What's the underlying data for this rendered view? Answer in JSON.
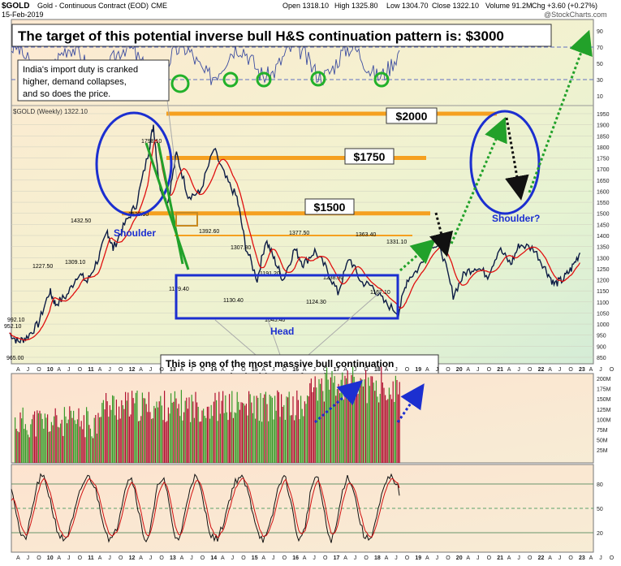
{
  "header": {
    "symbol": "$GOLD",
    "description": "Gold - Continuous Contract (EOD)",
    "exchange": "CME",
    "date": "15-Feb-2019",
    "open": "Open 1318.10",
    "high": "High 1325.80",
    "low": "Low 1304.70",
    "close": "Close 1322.10",
    "volume": "Volume 91.2M",
    "change": "Chg +3.60 (+0.27%)",
    "watermark": "@StockCharts.com",
    "price_label": "$GOLD (Weekly) 1322.10"
  },
  "annotations": {
    "headline": "The target of this potential inverse bull H&S continuation pattern is: $3000",
    "india_note": "India's import duty is cranked higher, demand collapses, and so does the price.",
    "massive_note": "This is one of the most massive bull continuation H&S patterns in the history of markets.",
    "label_2000": "$2000",
    "label_1750": "$1750",
    "label_1500": "$1500",
    "shoulder_left": "Shoulder",
    "shoulder_right": "Shoulder?",
    "head": "Head"
  },
  "colors": {
    "price_line": "#0b1a44",
    "moving_average": "#e01010",
    "target_lines": "#f5a020",
    "blue_box": "#1c2fd0",
    "green_arrow": "#22a12a",
    "volume_up": "#3a9a2a",
    "volume_down": "#b01030"
  },
  "chart_data": [
    {
      "type": "line",
      "panel": "rsi",
      "y_ticks": [
        90,
        70,
        50,
        30,
        10
      ],
      "ylim": [
        0,
        100
      ],
      "horizontal_lines": [
        70,
        30
      ]
    },
    {
      "type": "line",
      "panel": "price",
      "ylim": [
        830,
        1980
      ],
      "y_ticks": [
        850,
        900,
        950,
        1000,
        1050,
        1100,
        1150,
        1200,
        1250,
        1300,
        1350,
        1400,
        1450,
        1500,
        1550,
        1600,
        1650,
        1700,
        1750,
        1800,
        1850,
        1900,
        1950
      ],
      "x_labels": [
        "A",
        "J",
        "O",
        "10",
        "A",
        "J",
        "O",
        "11",
        "A",
        "J",
        "O",
        "12",
        "A",
        "J",
        "O",
        "13",
        "A",
        "J",
        "O",
        "14",
        "A",
        "J",
        "O",
        "15",
        "A",
        "J",
        "O",
        "16",
        "A",
        "J",
        "O",
        "17",
        "A",
        "J",
        "O",
        "18",
        "A",
        "J",
        "O",
        "19",
        "A",
        "J",
        "O",
        "20",
        "A",
        "J",
        "O",
        "21",
        "A",
        "J",
        "O",
        "22",
        "A",
        "J",
        "O",
        "23",
        "A",
        "J",
        "O"
      ],
      "series": [
        {
          "values": [
            [
              2009.2,
              960
            ],
            [
              2009.35,
              920
            ],
            [
              2009.5,
              940
            ],
            [
              2009.7,
              1000
            ],
            [
              2009.9,
              1150
            ],
            [
              2010.0,
              1090
            ],
            [
              2010.2,
              1130
            ],
            [
              2010.4,
              1230
            ],
            [
              2010.55,
              1190
            ],
            [
              2010.75,
              1300
            ],
            [
              2010.9,
              1420
            ],
            [
              2011.0,
              1340
            ],
            [
              2011.2,
              1450
            ],
            [
              2011.4,
              1540
            ],
            [
              2011.6,
              1760
            ],
            [
              2011.7,
              1900
            ],
            [
              2011.8,
              1630
            ],
            [
              2011.95,
              1550
            ],
            [
              2012.1,
              1770
            ],
            [
              2012.3,
              1580
            ],
            [
              2012.5,
              1590
            ],
            [
              2012.75,
              1790
            ],
            [
              2012.95,
              1660
            ],
            [
              2013.15,
              1570
            ],
            [
              2013.3,
              1350
            ],
            [
              2013.5,
              1200
            ],
            [
              2013.65,
              1380
            ],
            [
              2013.8,
              1290
            ],
            [
              2013.95,
              1200
            ],
            [
              2014.15,
              1340
            ],
            [
              2014.3,
              1270
            ],
            [
              2014.5,
              1330
            ],
            [
              2014.7,
              1250
            ],
            [
              2014.9,
              1140
            ],
            [
              2015.1,
              1300
            ],
            [
              2015.3,
              1190
            ],
            [
              2015.5,
              1170
            ],
            [
              2015.7,
              1100
            ],
            [
              2015.95,
              1050
            ],
            [
              2016.1,
              1200
            ],
            [
              2016.3,
              1250
            ],
            [
              2016.5,
              1370
            ],
            [
              2016.7,
              1330
            ],
            [
              2016.9,
              1130
            ],
            [
              2017.1,
              1230
            ],
            [
              2017.3,
              1260
            ],
            [
              2017.5,
              1220
            ],
            [
              2017.7,
              1340
            ],
            [
              2017.9,
              1270
            ],
            [
              2018.05,
              1360
            ],
            [
              2018.3,
              1340
            ],
            [
              2018.5,
              1250
            ],
            [
              2018.65,
              1180
            ],
            [
              2018.8,
              1200
            ],
            [
              2018.95,
              1250
            ],
            [
              2019.1,
              1322
            ]
          ]
        }
      ],
      "price_labels": [
        "965.00",
        "952.10",
        "992.10",
        "1227.50",
        "1309.10",
        "1432.50",
        "1798.10",
        "1523.90",
        "1392.60",
        "1179.40",
        "1307.80",
        "1130.40",
        "1191.20",
        "1377.50",
        "1045.40",
        "1124.30",
        "1238.30",
        "1363.40",
        "1331.10",
        "1167.10"
      ],
      "target_levels": [
        1950,
        1750,
        1500,
        1400
      ]
    },
    {
      "type": "bar",
      "panel": "volume",
      "y_ticks": [
        "200M",
        "175M",
        "150M",
        "125M",
        "100M",
        "75M",
        "50M",
        "25M"
      ],
      "ylim": [
        0,
        200
      ]
    },
    {
      "type": "line",
      "panel": "stochastic",
      "y_ticks": [
        80,
        50,
        20
      ],
      "ylim": [
        0,
        100
      ],
      "horizontal_lines": [
        80,
        50,
        20
      ]
    }
  ]
}
